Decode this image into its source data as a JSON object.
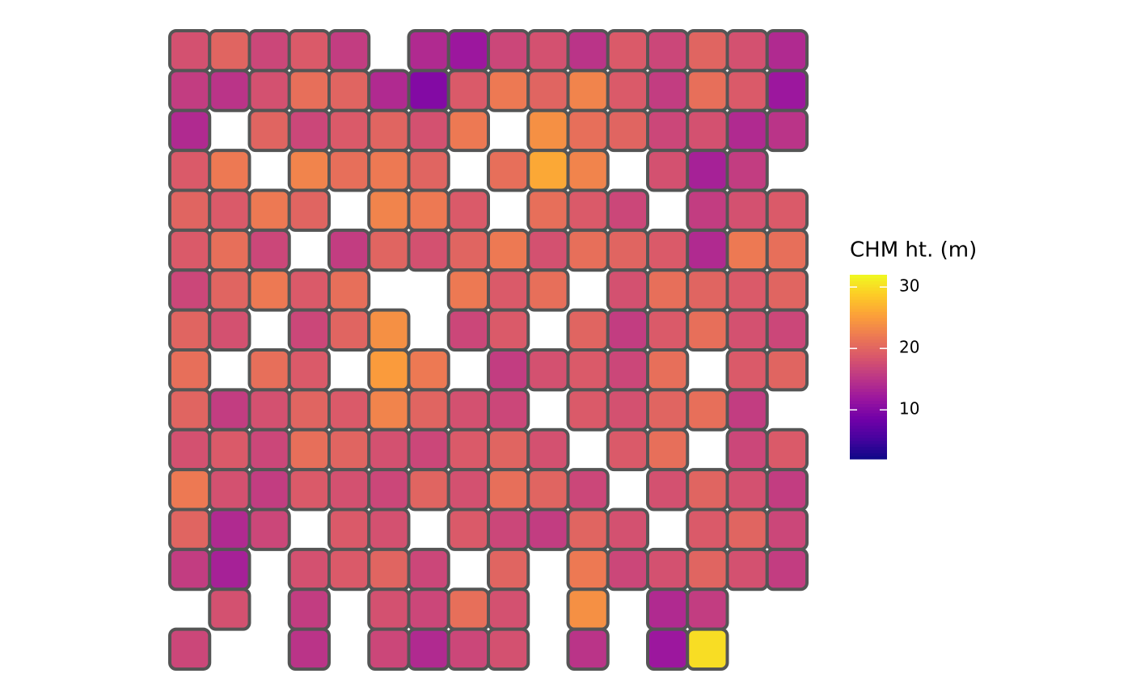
{
  "chart_data": {
    "type": "raster",
    "legend_title": "CHM ht. (m)",
    "colormap": "plasma",
    "outline_color": "#555555",
    "clim": [
      2,
      32
    ],
    "cticks": [
      10,
      20,
      30
    ],
    "values": [
      [
        18,
        20,
        17,
        19,
        16,
        null,
        14,
        12,
        17,
        18,
        15,
        19,
        17,
        20,
        18,
        14
      ],
      [
        16,
        15,
        18,
        21,
        20,
        14,
        10,
        19,
        22,
        20,
        23,
        19,
        16,
        21,
        19,
        12
      ],
      [
        14,
        null,
        20,
        17,
        19,
        20,
        18,
        22,
        null,
        24,
        21,
        20,
        17,
        18,
        14,
        15
      ],
      [
        19,
        22,
        null,
        23,
        21,
        22,
        20,
        null,
        21,
        26,
        23,
        null,
        18,
        13,
        16,
        null
      ],
      [
        20,
        19,
        22,
        20,
        null,
        23,
        22,
        19,
        null,
        21,
        19,
        17,
        null,
        16,
        18,
        19
      ],
      [
        19,
        21,
        17,
        null,
        16,
        20,
        18,
        20,
        22,
        18,
        21,
        20,
        19,
        14,
        22,
        21
      ],
      [
        17,
        20,
        22,
        19,
        21,
        null,
        null,
        22,
        19,
        21,
        null,
        18,
        21,
        20,
        19,
        20
      ],
      [
        20,
        18,
        null,
        17,
        20,
        24,
        null,
        17,
        19,
        null,
        20,
        16,
        19,
        21,
        18,
        17
      ],
      [
        21,
        null,
        21,
        19,
        null,
        25,
        22,
        null,
        16,
        18,
        19,
        17,
        21,
        null,
        19,
        20
      ],
      [
        20,
        16,
        18,
        20,
        19,
        23,
        20,
        18,
        17,
        null,
        19,
        18,
        20,
        21,
        16,
        null
      ],
      [
        18,
        19,
        17,
        21,
        20,
        18,
        17,
        19,
        20,
        18,
        null,
        19,
        21,
        null,
        17,
        19
      ],
      [
        22,
        18,
        16,
        19,
        18,
        17,
        20,
        18,
        21,
        20,
        17,
        null,
        18,
        20,
        18,
        16
      ],
      [
        20,
        14,
        17,
        null,
        19,
        18,
        null,
        19,
        17,
        16,
        20,
        18,
        null,
        19,
        20,
        17
      ],
      [
        16,
        13,
        null,
        18,
        19,
        20,
        17,
        null,
        20,
        null,
        22,
        17,
        18,
        20,
        18,
        16
      ],
      [
        null,
        18,
        null,
        16,
        null,
        18,
        17,
        21,
        18,
        null,
        24,
        null,
        14,
        16,
        null,
        null
      ],
      [
        17,
        null,
        null,
        15,
        null,
        17,
        14,
        17,
        18,
        null,
        15,
        null,
        12,
        30,
        null,
        null
      ]
    ]
  }
}
